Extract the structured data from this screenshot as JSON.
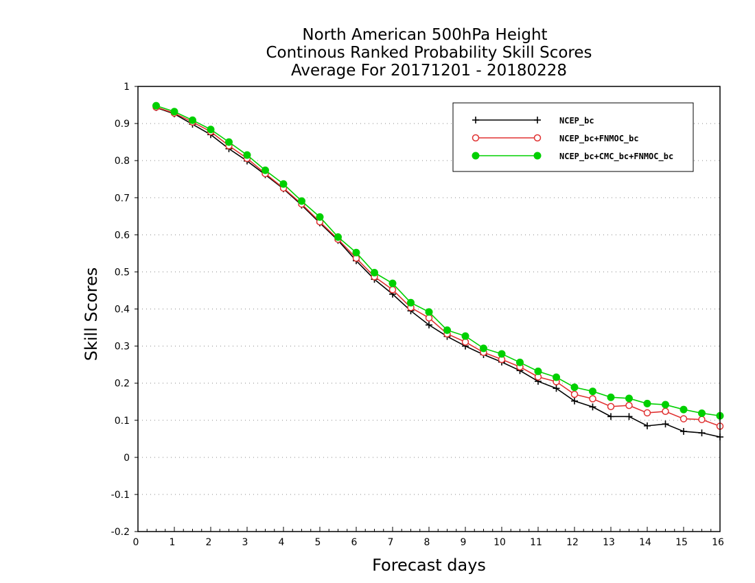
{
  "chart_data": {
    "type": "line",
    "title_lines": [
      "North American 500hPa Height",
      "Continous Ranked Probability Skill Scores",
      "Average For 20171201 - 20180228"
    ],
    "xlabel": "Forecast days",
    "ylabel": "Skill Scores",
    "xlim": [
      0,
      16
    ],
    "ylim": [
      -0.2,
      1
    ],
    "xticks": [
      "0",
      "1",
      "2",
      "3",
      "4",
      "5",
      "6",
      "7",
      "8",
      "9",
      "10",
      "11",
      "12",
      "13",
      "14",
      "15",
      "16"
    ],
    "yticks": [
      "1",
      "0.9",
      "0.8",
      "0.7",
      "0.6",
      "0.5",
      "0.4",
      "0.3",
      "0.2",
      "0.1",
      "0",
      "-0.1",
      "-0.2"
    ],
    "grid": true,
    "legend_position": "top-right",
    "x": [
      0.5,
      1,
      1.5,
      2,
      2.5,
      3,
      3.5,
      4,
      4.5,
      5,
      5.5,
      6,
      6.5,
      7,
      7.5,
      8,
      8.5,
      9,
      9.5,
      10,
      10.5,
      11,
      11.5,
      12,
      12.5,
      13,
      13.5,
      14,
      14.5,
      15,
      15.5,
      16
    ],
    "series": [
      {
        "name": "NCEP_bc",
        "color": "#000000",
        "marker": "plus",
        "values": [
          0.943,
          0.926,
          0.898,
          0.87,
          0.832,
          0.799,
          0.762,
          0.724,
          0.68,
          0.632,
          0.585,
          0.53,
          0.48,
          0.44,
          0.395,
          0.357,
          0.326,
          0.3,
          0.277,
          0.257,
          0.234,
          0.205,
          0.186,
          0.152,
          0.136,
          0.11,
          0.11,
          0.085,
          0.09,
          0.07,
          0.066,
          0.055
        ]
      },
      {
        "name": "NCEP_bc+FNMOC_bc",
        "color": "#e03030",
        "marker": "open-circle",
        "values": [
          0.944,
          0.928,
          0.904,
          0.878,
          0.84,
          0.806,
          0.765,
          0.726,
          0.683,
          0.635,
          0.588,
          0.537,
          0.487,
          0.452,
          0.404,
          0.376,
          0.333,
          0.311,
          0.283,
          0.264,
          0.244,
          0.217,
          0.204,
          0.17,
          0.158,
          0.137,
          0.14,
          0.12,
          0.124,
          0.104,
          0.102,
          0.084
        ]
      },
      {
        "name": "NCEP_bc+CMC_bc+FNMOC_bc",
        "color": "#00d000",
        "marker": "filled-circle",
        "values": [
          0.948,
          0.932,
          0.909,
          0.884,
          0.85,
          0.815,
          0.774,
          0.737,
          0.691,
          0.648,
          0.594,
          0.552,
          0.498,
          0.469,
          0.417,
          0.392,
          0.343,
          0.327,
          0.294,
          0.279,
          0.256,
          0.232,
          0.216,
          0.189,
          0.178,
          0.162,
          0.159,
          0.145,
          0.142,
          0.129,
          0.119,
          0.112
        ]
      }
    ]
  }
}
